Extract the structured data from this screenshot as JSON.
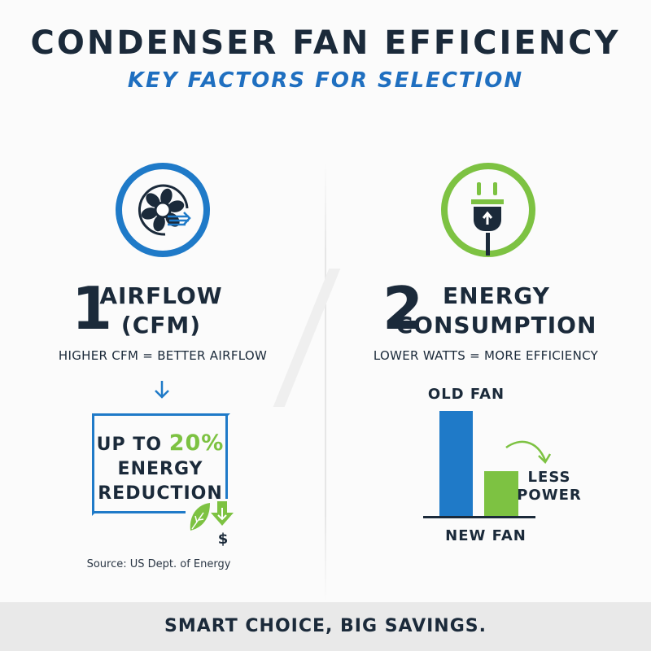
{
  "header": {
    "title": "CONDENSER FAN EFFICIENCY",
    "subtitle": "KEY FACTORS FOR SELECTION"
  },
  "colors": {
    "navy": "#1b2a3a",
    "blue": "#1f7ac8",
    "green": "#7dc242",
    "footer_bg": "#e9e9e9"
  },
  "left": {
    "icon": "fan-icon",
    "number": "1",
    "heading_line1": "AIRFLOW",
    "heading_line2": "(CFM)",
    "description": "HIGHER CFM = BETTER AIRFLOW",
    "callout": {
      "prefix": "UP TO",
      "percent": "20%",
      "line2": "ENERGY",
      "line3": "REDUCTION"
    },
    "dollar": "$",
    "source": "Source: US Dept. of Energy"
  },
  "right": {
    "icon": "plug-icon",
    "number": "2",
    "heading_line1": "ENERGY",
    "heading_line2": "CONSUMPTION",
    "description": "LOWER WATTS = MORE EFFICIENCY",
    "chart": {
      "bars": [
        {
          "label": "OLD FAN",
          "relative_level": 1.0,
          "color": "#1f7ac8"
        },
        {
          "label": "NEW FAN",
          "relative_level": 0.43,
          "color": "#7dc242"
        }
      ],
      "annotation_line1": "LESS",
      "annotation_line2": "POWER"
    }
  },
  "footer": {
    "text": "SMART CHOICE, BIG SAVINGS."
  }
}
